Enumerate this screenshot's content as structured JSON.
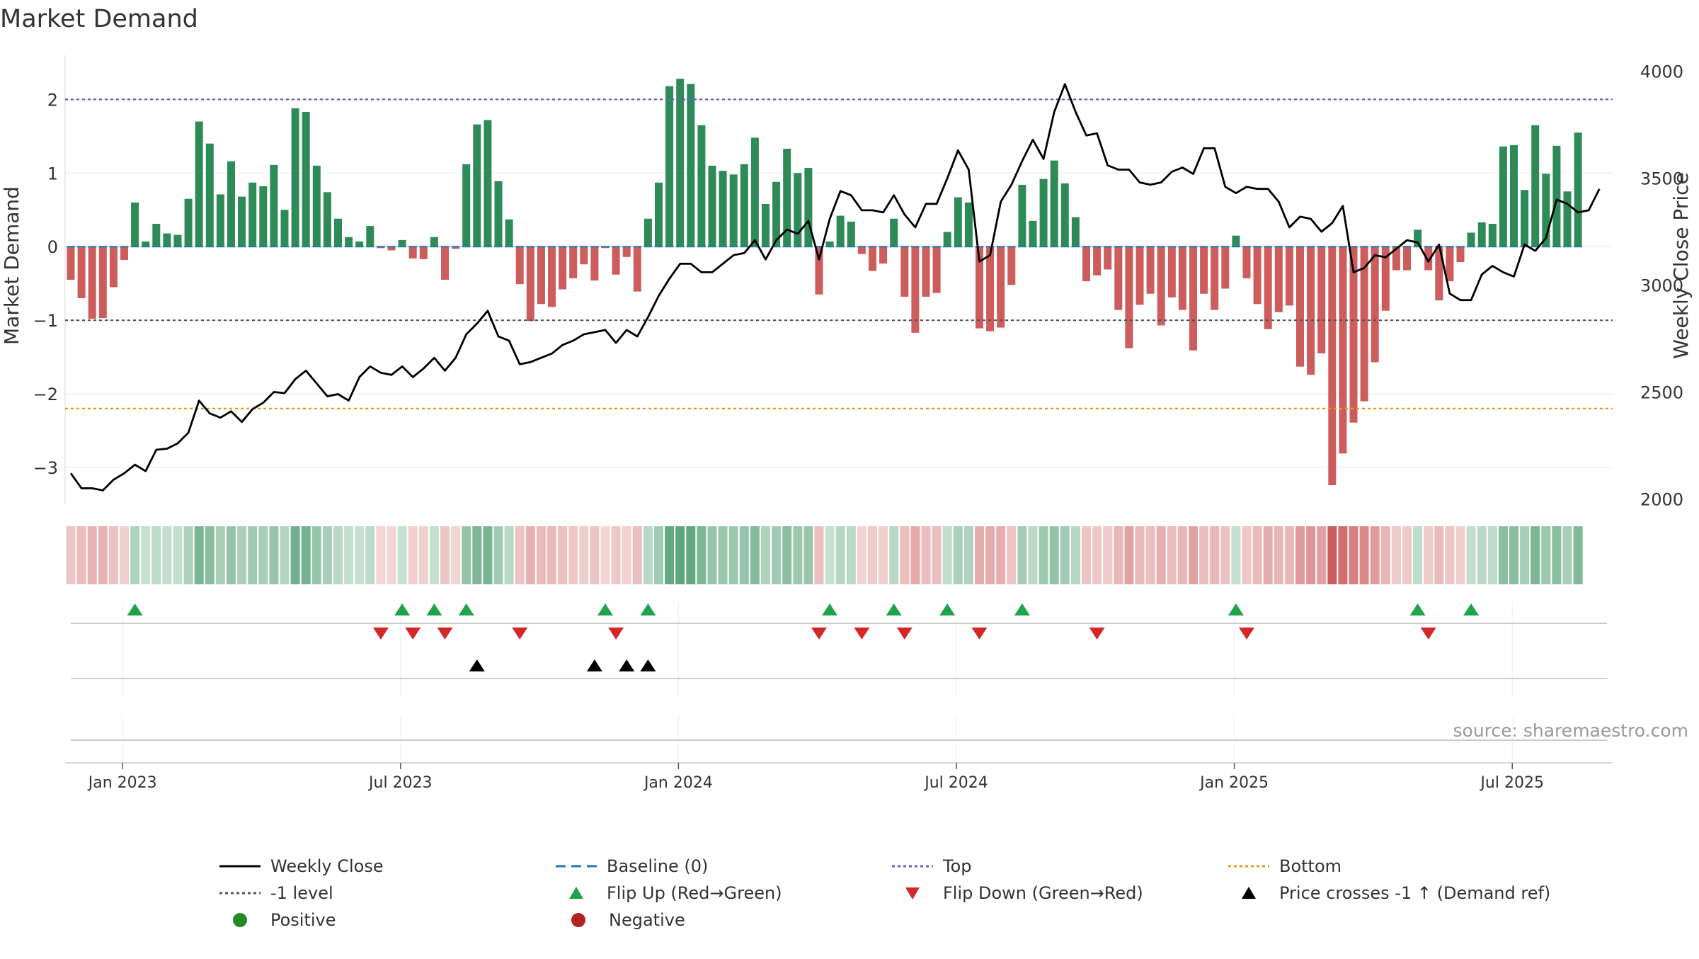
{
  "page": {
    "title": "Market Demand",
    "source": "source: sharemaestro.com"
  },
  "colors": {
    "positive": "#2e8b57",
    "negative": "#cd5c5c",
    "price": "#000000",
    "top": "#6a5acd",
    "bottom": "#e69a1a",
    "minus_one": "#555555",
    "baseline": "#1f77b4",
    "flip_up": "#1ea34a",
    "flip_down": "#d62728",
    "cross": "#000000",
    "grid": "#e8e8e8"
  },
  "chart_data": {
    "type": "bar+line",
    "title": "Market Demand",
    "ylabel_left": "Market Demand",
    "ylabel_right": "Weekly Close Price",
    "ylim_left": [
      -3.5,
      2.6
    ],
    "ylim_right": [
      1975,
      4075
    ],
    "yticks_left": [
      2,
      1,
      0,
      -1,
      -2,
      -3
    ],
    "ytick_labels_left": [
      "2",
      "1",
      "0",
      "−1",
      "−2",
      "−3"
    ],
    "yticks_right": [
      4000,
      3500,
      3000,
      2500,
      2000
    ],
    "ytick_labels_right": [
      "4000",
      "3500",
      "3000",
      "2500",
      "2000"
    ],
    "reference_lines": {
      "top": 2.0,
      "bottom": -2.2,
      "minus_one": -1.0,
      "baseline": 0
    },
    "x_ticks": [
      {
        "week": 3,
        "label": "Jan 2023"
      },
      {
        "week": 29,
        "label": "Jul 2023"
      },
      {
        "week": 55,
        "label": "Jan 2024"
      },
      {
        "week": 81,
        "label": "Jul 2024"
      },
      {
        "week": 107,
        "label": "Jan 2025"
      },
      {
        "week": 133,
        "label": "Jul 2025"
      }
    ],
    "demand": [
      -0.45,
      -0.7,
      -0.98,
      -0.97,
      -0.55,
      -0.18,
      0.6,
      0.07,
      0.31,
      0.18,
      0.16,
      0.65,
      1.7,
      1.4,
      0.71,
      1.16,
      0.68,
      0.87,
      0.82,
      1.11,
      0.5,
      1.88,
      1.83,
      1.1,
      0.74,
      0.38,
      0.13,
      0.07,
      0.28,
      -0.02,
      -0.05,
      0.09,
      -0.16,
      -0.17,
      0.13,
      -0.45,
      -0.03,
      1.12,
      1.66,
      1.72,
      0.89,
      0.37,
      -0.51,
      -1.01,
      -0.78,
      -0.82,
      -0.58,
      -0.43,
      -0.24,
      -0.46,
      -0.02,
      -0.38,
      -0.14,
      -0.61,
      0.38,
      0.87,
      2.18,
      2.28,
      2.21,
      1.65,
      1.1,
      1.03,
      0.98,
      1.12,
      1.48,
      0.58,
      0.88,
      1.33,
      1.0,
      1.07,
      -0.65,
      0.07,
      0.42,
      0.34,
      -0.1,
      -0.33,
      -0.23,
      0.38,
      -0.68,
      -1.17,
      -0.68,
      -0.63,
      0.2,
      0.67,
      0.6,
      -1.11,
      -1.15,
      -1.1,
      -0.52,
      0.84,
      0.35,
      0.92,
      1.17,
      0.86,
      0.4,
      -0.47,
      -0.39,
      -0.31,
      -0.86,
      -1.38,
      -0.79,
      -0.64,
      -1.07,
      -0.69,
      -0.86,
      -1.41,
      -0.64,
      -0.86,
      -0.57,
      0.15,
      -0.43,
      -0.78,
      -1.12,
      -0.89,
      -0.8,
      -1.63,
      -1.74,
      -1.45,
      -3.24,
      -2.81,
      -2.39,
      -2.1,
      -1.57,
      -0.87,
      -0.32,
      -0.32,
      0.23,
      -0.32,
      -0.73,
      -0.47,
      -0.21,
      0.19,
      0.33,
      0.31,
      1.36,
      1.38,
      0.77,
      1.65,
      0.99,
      1.37,
      0.75,
      1.55
    ],
    "price": [
      2120,
      2050,
      2050,
      2040,
      2090,
      2120,
      2160,
      2130,
      2230,
      2235,
      2260,
      2310,
      2460,
      2400,
      2380,
      2410,
      2360,
      2420,
      2450,
      2500,
      2495,
      2560,
      2600,
      2540,
      2480,
      2490,
      2460,
      2570,
      2620,
      2590,
      2580,
      2620,
      2570,
      2610,
      2660,
      2600,
      2660,
      2770,
      2820,
      2880,
      2760,
      2740,
      2630,
      2640,
      2660,
      2680,
      2720,
      2740,
      2770,
      2780,
      2790,
      2730,
      2790,
      2760,
      2850,
      2950,
      3030,
      3100,
      3100,
      3060,
      3060,
      3100,
      3140,
      3150,
      3210,
      3120,
      3210,
      3260,
      3240,
      3300,
      3120,
      3310,
      3440,
      3420,
      3350,
      3350,
      3340,
      3420,
      3330,
      3270,
      3380,
      3380,
      3500,
      3630,
      3540,
      3110,
      3140,
      3390,
      3470,
      3580,
      3680,
      3590,
      3810,
      3940,
      3810,
      3700,
      3710,
      3560,
      3540,
      3540,
      3480,
      3470,
      3480,
      3530,
      3550,
      3520,
      3640,
      3640,
      3460,
      3430,
      3460,
      3450,
      3450,
      3390,
      3270,
      3320,
      3310,
      3250,
      3290,
      3370,
      3060,
      3080,
      3140,
      3130,
      3170,
      3210,
      3200,
      3110,
      3190,
      2960,
      2930,
      2930,
      3050,
      3090,
      3060,
      3040,
      3190,
      3160,
      3220,
      3400,
      3380,
      3340,
      3350,
      3450
    ],
    "flip_up_weeks": [
      6,
      31,
      34,
      37,
      50,
      54,
      71,
      77,
      82,
      89,
      109,
      126,
      131
    ],
    "flip_down_weeks": [
      29,
      32,
      35,
      42,
      51,
      70,
      74,
      78,
      85,
      96,
      110,
      127
    ],
    "price_cross_weeks": [
      38,
      49,
      52,
      54
    ]
  },
  "legend": {
    "items": [
      {
        "label": "Weekly Close",
        "symbol": "solid-line",
        "color": "#000000"
      },
      {
        "label": "Baseline (0)",
        "symbol": "dashed-line",
        "color": "#1f77b4"
      },
      {
        "label": "Top",
        "symbol": "dotted-line",
        "color": "#6a5acd"
      },
      {
        "label": "Bottom",
        "symbol": "dotted-line",
        "color": "#e69a1a"
      },
      {
        "label": "-1 level",
        "symbol": "dotted-line",
        "color": "#555555"
      },
      {
        "label": "Flip Up (Red→Green)",
        "symbol": "triangle-up",
        "color": "#1ea34a"
      },
      {
        "label": "Flip Down (Green→Red)",
        "symbol": "triangle-down",
        "color": "#d62728"
      },
      {
        "label": "Price crosses -1 ↑ (Demand ref)",
        "symbol": "triangle-up",
        "color": "#000000"
      },
      {
        "label": "Positive",
        "symbol": "circle",
        "color": "#228b22"
      },
      {
        "label": "Negative",
        "symbol": "circle",
        "color": "#b22222"
      }
    ]
  }
}
